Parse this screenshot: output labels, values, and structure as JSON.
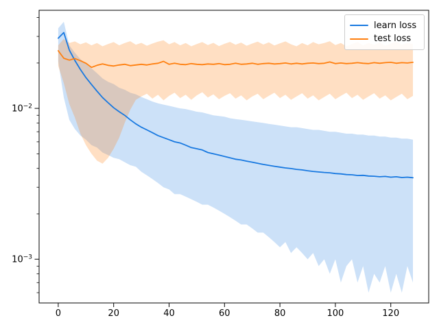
{
  "figure": {
    "background": "#ffffff",
    "spine_color": "#000000",
    "tick_color": "#000000",
    "text_color": "#000000"
  },
  "legend": {
    "items": [
      {
        "label": "learn loss",
        "color": "#1778e0"
      },
      {
        "label": "test loss",
        "color": "#ff7f0e"
      }
    ]
  },
  "chart_data": {
    "type": "line",
    "title": "",
    "xlabel": "",
    "ylabel": "",
    "y_scale": "log",
    "grid": false,
    "legend_position": "upper right",
    "xlim": [
      -6.9,
      133.7
    ],
    "ylim": [
      0.000513,
      0.0447
    ],
    "x_ticks": [
      0,
      20,
      40,
      60,
      80,
      100,
      120
    ],
    "y_major_ticks": [
      {
        "value": 0.01,
        "base": "10",
        "exponent": "−2"
      },
      {
        "value": 0.001,
        "base": "10",
        "exponent": "−3"
      }
    ],
    "y_minor_ticks": [
      0.0006,
      0.0007,
      0.0008,
      0.0009,
      0.002,
      0.003,
      0.004,
      0.005,
      0.006,
      0.007,
      0.008,
      0.009,
      0.02,
      0.03,
      0.04
    ],
    "x_start": 0,
    "x_step": 2,
    "series": [
      {
        "name": "learn loss",
        "color": "#1778e0",
        "band_opacity": 0.22,
        "mean": [
          0.0292,
          0.0318,
          0.0244,
          0.0208,
          0.0181,
          0.016,
          0.0144,
          0.013,
          0.0118,
          0.0109,
          0.0101,
          0.0095,
          0.009,
          0.0084,
          0.0079,
          0.0075,
          0.0072,
          0.0069,
          0.0066,
          0.0064,
          0.0062,
          0.006,
          0.0059,
          0.0057,
          0.0055,
          0.0054,
          0.0053,
          0.0051,
          0.005,
          0.0049,
          0.0048,
          0.0047,
          0.0046,
          0.00455,
          0.00447,
          0.0044,
          0.00432,
          0.00425,
          0.00419,
          0.00413,
          0.00408,
          0.00403,
          0.00399,
          0.00394,
          0.00391,
          0.00386,
          0.00382,
          0.00379,
          0.00376,
          0.00374,
          0.0037,
          0.00368,
          0.00364,
          0.00363,
          0.00359,
          0.0036,
          0.00356,
          0.00355,
          0.00352,
          0.00354,
          0.0035,
          0.00352,
          0.00348,
          0.0035,
          0.00347
        ],
        "high": [
          0.034,
          0.0375,
          0.0262,
          0.0234,
          0.0212,
          0.0197,
          0.0184,
          0.0171,
          0.0158,
          0.015,
          0.0145,
          0.0137,
          0.0133,
          0.0127,
          0.0124,
          0.0119,
          0.0115,
          0.0111,
          0.0108,
          0.0106,
          0.0104,
          0.0102,
          0.01,
          0.0099,
          0.0097,
          0.0095,
          0.0094,
          0.0092,
          0.009,
          0.0089,
          0.0088,
          0.0086,
          0.0085,
          0.0084,
          0.0083,
          0.0082,
          0.0081,
          0.008,
          0.0079,
          0.0078,
          0.0077,
          0.0076,
          0.0075,
          0.0075,
          0.0074,
          0.0073,
          0.0072,
          0.0072,
          0.0071,
          0.007,
          0.007,
          0.0069,
          0.0068,
          0.0068,
          0.0067,
          0.0067,
          0.0066,
          0.0066,
          0.0065,
          0.0065,
          0.0064,
          0.0064,
          0.0063,
          0.0063,
          0.0062
        ],
        "low": [
          0.0205,
          0.0118,
          0.0084,
          0.0073,
          0.0066,
          0.0062,
          0.0057,
          0.0055,
          0.0051,
          0.0049,
          0.0047,
          0.0046,
          0.0044,
          0.0042,
          0.0041,
          0.0038,
          0.0036,
          0.0034,
          0.0032,
          0.003,
          0.0029,
          0.0027,
          0.0027,
          0.0026,
          0.0025,
          0.0024,
          0.0023,
          0.0023,
          0.0022,
          0.0021,
          0.002,
          0.0019,
          0.0018,
          0.0017,
          0.0017,
          0.0016,
          0.0015,
          0.0015,
          0.0014,
          0.0013,
          0.0012,
          0.0013,
          0.0011,
          0.0012,
          0.0011,
          0.001,
          0.0011,
          0.0009,
          0.001,
          0.0008,
          0.001,
          0.0007,
          0.0009,
          0.001,
          0.0007,
          0.0009,
          0.0006,
          0.0008,
          0.0007,
          0.0009,
          0.0006,
          0.0008,
          0.0006,
          0.0009,
          0.0007
        ]
      },
      {
        "name": "test loss",
        "color": "#ff7f0e",
        "band_opacity": 0.25,
        "mean": [
          0.0241,
          0.0215,
          0.0209,
          0.0214,
          0.0207,
          0.0199,
          0.0187,
          0.0193,
          0.0197,
          0.0193,
          0.0191,
          0.0194,
          0.0196,
          0.0192,
          0.0194,
          0.0196,
          0.0194,
          0.0197,
          0.0199,
          0.0205,
          0.0196,
          0.0199,
          0.0196,
          0.0195,
          0.0198,
          0.0196,
          0.0195,
          0.0197,
          0.0196,
          0.0198,
          0.0195,
          0.0196,
          0.0199,
          0.0196,
          0.0197,
          0.0199,
          0.0196,
          0.0198,
          0.0199,
          0.0197,
          0.0198,
          0.02,
          0.0197,
          0.0199,
          0.0197,
          0.0199,
          0.02,
          0.0198,
          0.0199,
          0.0203,
          0.0198,
          0.02,
          0.0198,
          0.0199,
          0.0201,
          0.0199,
          0.0198,
          0.0201,
          0.0199,
          0.0201,
          0.0202,
          0.0199,
          0.0201,
          0.02,
          0.0202
        ],
        "high": [
          0.0262,
          0.0289,
          0.0271,
          0.0278,
          0.0266,
          0.0274,
          0.0262,
          0.0271,
          0.0258,
          0.0267,
          0.0275,
          0.0262,
          0.0271,
          0.0279,
          0.0264,
          0.0272,
          0.026,
          0.0269,
          0.0277,
          0.0283,
          0.0266,
          0.0275,
          0.0262,
          0.0271,
          0.0258,
          0.0267,
          0.0275,
          0.0263,
          0.0272,
          0.0259,
          0.0268,
          0.0276,
          0.0264,
          0.0273,
          0.026,
          0.0269,
          0.0277,
          0.0265,
          0.0274,
          0.0261,
          0.027,
          0.0278,
          0.0266,
          0.0258,
          0.0271,
          0.0262,
          0.0275,
          0.0266,
          0.0271,
          0.0279,
          0.0263,
          0.0271,
          0.0258,
          0.0267,
          0.0275,
          0.0262,
          0.0271,
          0.0264,
          0.0273,
          0.026,
          0.0269,
          0.0277,
          0.0264,
          0.0271,
          0.0267
        ],
        "low": [
          0.0191,
          0.0147,
          0.0107,
          0.0087,
          0.0068,
          0.0057,
          0.005,
          0.0045,
          0.0043,
          0.0047,
          0.0054,
          0.0064,
          0.008,
          0.0098,
          0.0114,
          0.012,
          0.0125,
          0.0116,
          0.0123,
          0.0113,
          0.0121,
          0.0127,
          0.0117,
          0.0123,
          0.0114,
          0.0122,
          0.0128,
          0.0118,
          0.0124,
          0.0115,
          0.0121,
          0.0126,
          0.0116,
          0.0122,
          0.0113,
          0.012,
          0.0125,
          0.0115,
          0.0121,
          0.0127,
          0.0117,
          0.0123,
          0.0114,
          0.012,
          0.0126,
          0.0116,
          0.0122,
          0.0113,
          0.0119,
          0.0125,
          0.0115,
          0.0121,
          0.0127,
          0.0117,
          0.0123,
          0.0114,
          0.012,
          0.0126,
          0.0116,
          0.0122,
          0.0113,
          0.0119,
          0.0125,
          0.0115,
          0.0121
        ]
      }
    ]
  }
}
